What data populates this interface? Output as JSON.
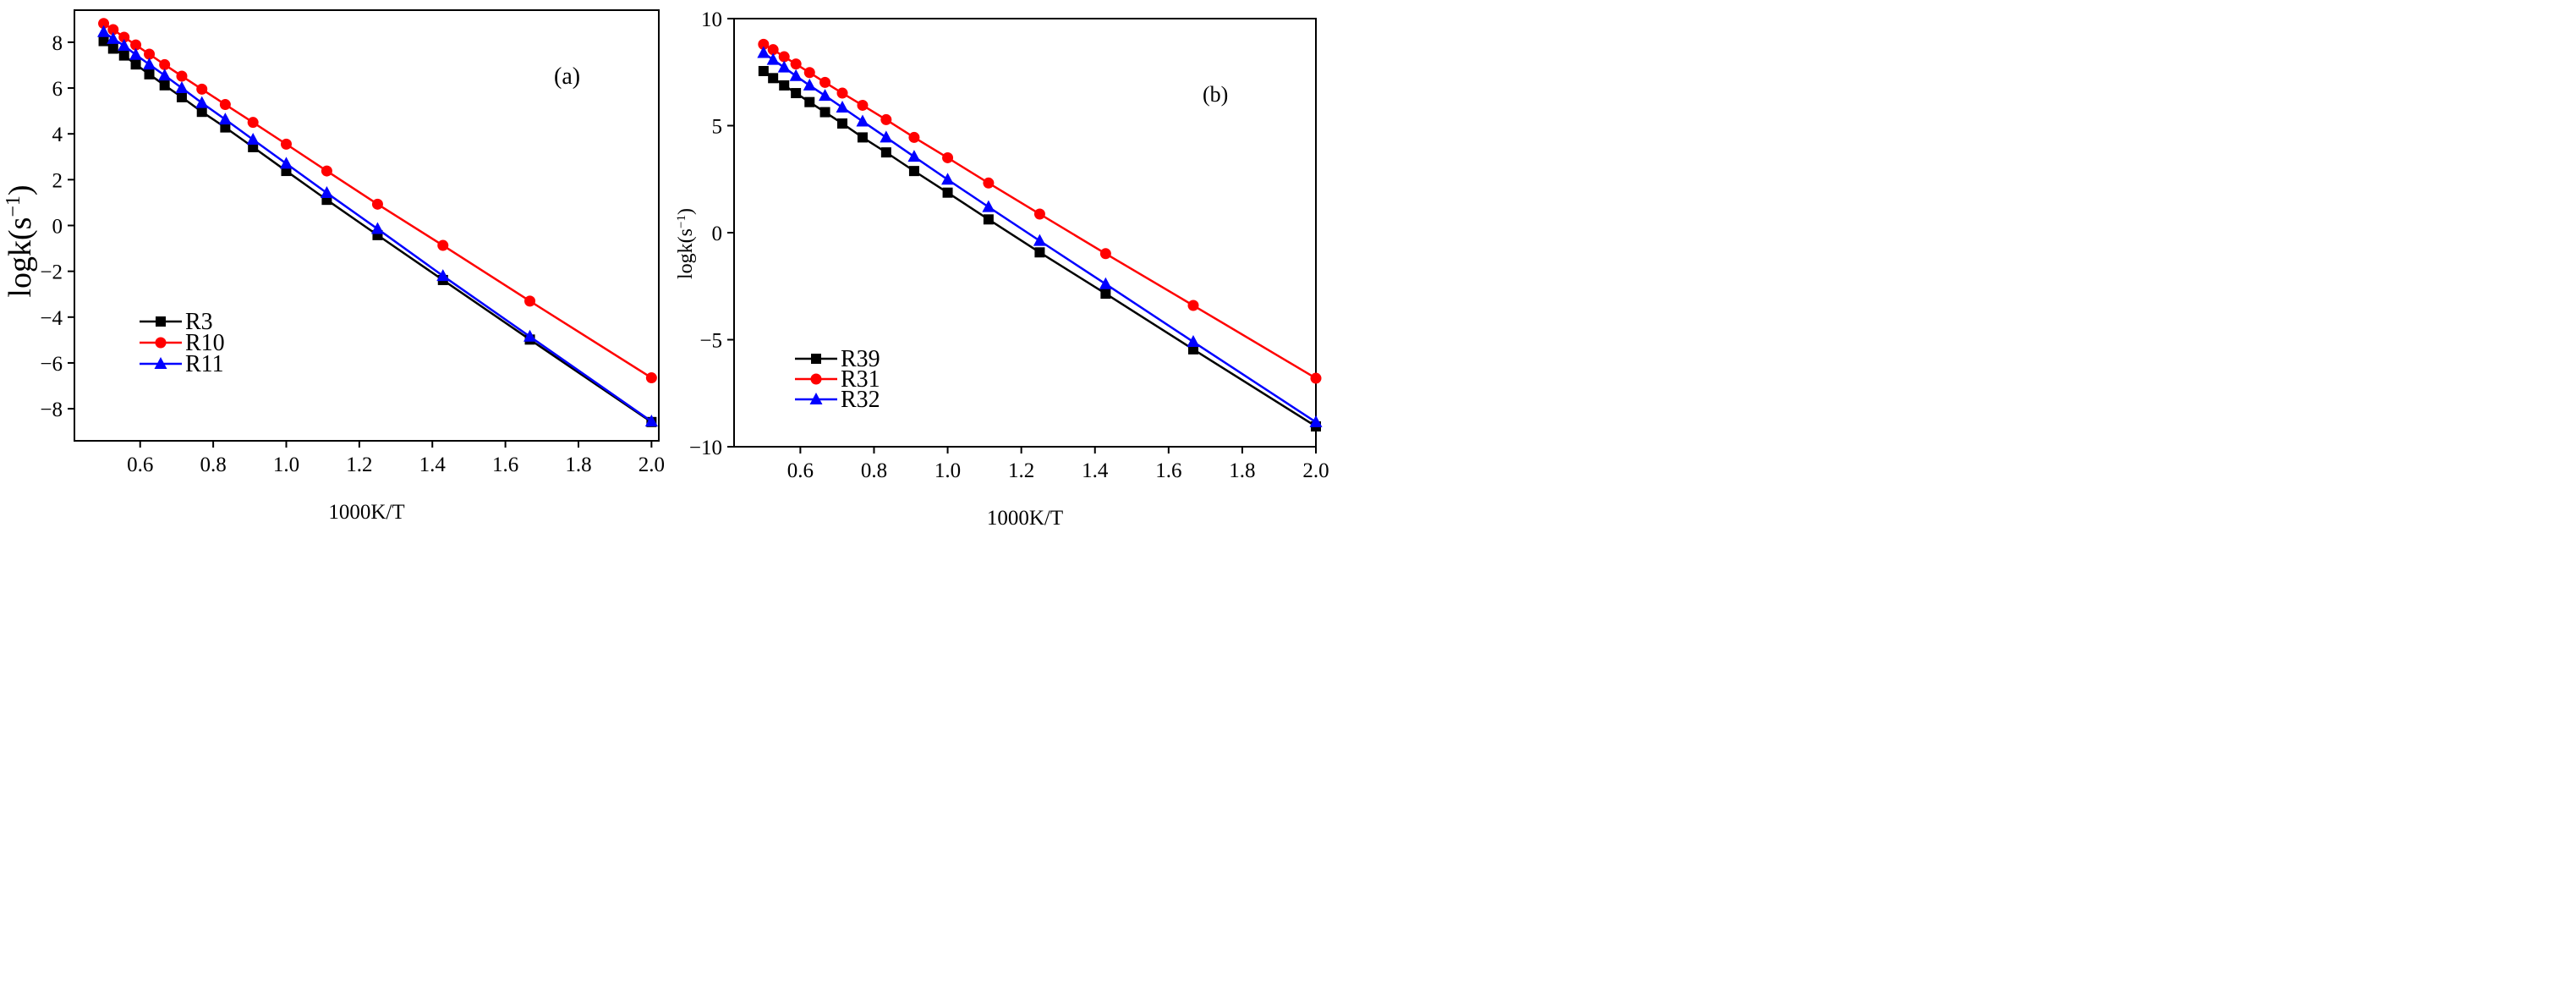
{
  "chart_data": [
    {
      "type": "line",
      "panel_label": "(a)",
      "xlabel": "1000K/T",
      "ylabel_base": "logk(s",
      "ylabel_exp": "−1",
      "ylabel_close": ")",
      "xlim": [
        0.42,
        2.02
      ],
      "ylim": [
        -9.4,
        9.4
      ],
      "xticks": [
        0.6,
        0.8,
        1.0,
        1.2,
        1.4,
        1.6,
        1.8,
        2.0
      ],
      "xtick_labels": [
        "0.6",
        "0.8",
        "1.0",
        "1.2",
        "1.4",
        "1.6",
        "1.8",
        "2.0"
      ],
      "yticks": [
        -8,
        -6,
        -4,
        -2,
        0,
        2,
        4,
        6,
        8
      ],
      "ytick_labels": [
        "−8",
        "−6",
        "−4",
        "−2",
        "0",
        "2",
        "4",
        "6",
        "8"
      ],
      "legend_position": "bottom-left",
      "x": [
        0.5,
        0.526,
        0.556,
        0.588,
        0.625,
        0.667,
        0.714,
        0.769,
        0.833,
        0.909,
        1.0,
        1.111,
        1.25,
        1.429,
        1.667,
        2.0
      ],
      "series": [
        {
          "name": "R3",
          "color": "#000000",
          "marker": "square",
          "values": [
            8.05,
            7.72,
            7.42,
            7.03,
            6.6,
            6.12,
            5.6,
            4.96,
            4.28,
            3.42,
            2.38,
            1.12,
            -0.42,
            -2.38,
            -4.98,
            -8.58
          ]
        },
        {
          "name": "R10",
          "color": "#ff0000",
          "marker": "circle",
          "values": [
            8.82,
            8.55,
            8.22,
            7.88,
            7.48,
            7.02,
            6.52,
            5.95,
            5.28,
            4.5,
            3.55,
            2.38,
            0.93,
            -0.87,
            -3.3,
            -6.65
          ]
        },
        {
          "name": "R11",
          "color": "#0000ff",
          "marker": "triangle",
          "values": [
            8.45,
            8.15,
            7.85,
            7.45,
            7.03,
            6.55,
            6.0,
            5.35,
            4.63,
            3.75,
            2.7,
            1.42,
            -0.15,
            -2.2,
            -4.85,
            -8.55
          ]
        }
      ]
    },
    {
      "type": "line",
      "panel_label": "(b)",
      "xlabel": "1000K/T",
      "ylabel_base": "logk(s",
      "ylabel_exp": "−1",
      "ylabel_close": ")",
      "xlim": [
        0.42,
        2.0
      ],
      "ylim": [
        -10,
        10
      ],
      "xticks": [
        0.6,
        0.8,
        1.0,
        1.2,
        1.4,
        1.6,
        1.8,
        2.0
      ],
      "xtick_labels": [
        "0.6",
        "0.8",
        "1.0",
        "1.2",
        "1.4",
        "1.6",
        "1.8",
        "2.0"
      ],
      "yticks": [
        -10,
        -5,
        0,
        5,
        10
      ],
      "ytick_labels": [
        "−10",
        "−5",
        "0",
        "5",
        "10"
      ],
      "legend_position": "bottom-left",
      "x": [
        0.5,
        0.526,
        0.556,
        0.588,
        0.625,
        0.667,
        0.714,
        0.769,
        0.833,
        0.909,
        1.0,
        1.111,
        1.25,
        1.429,
        1.667,
        2.0
      ],
      "series": [
        {
          "name": "R39",
          "color": "#000000",
          "marker": "square",
          "values": [
            7.55,
            7.22,
            6.88,
            6.52,
            6.1,
            5.63,
            5.1,
            4.45,
            3.75,
            2.88,
            1.87,
            0.62,
            -0.92,
            -2.85,
            -5.45,
            -9.05
          ]
        },
        {
          "name": "R31",
          "color": "#ff0000",
          "marker": "circle",
          "values": [
            8.8,
            8.55,
            8.22,
            7.88,
            7.48,
            7.02,
            6.52,
            5.95,
            5.28,
            4.45,
            3.5,
            2.32,
            0.87,
            -0.98,
            -3.4,
            -6.8
          ]
        },
        {
          "name": "R32",
          "color": "#0000ff",
          "marker": "triangle",
          "values": [
            8.4,
            8.08,
            7.72,
            7.32,
            6.88,
            6.4,
            5.85,
            5.2,
            4.45,
            3.55,
            2.48,
            1.2,
            -0.38,
            -2.4,
            -5.1,
            -8.85
          ]
        }
      ]
    }
  ]
}
